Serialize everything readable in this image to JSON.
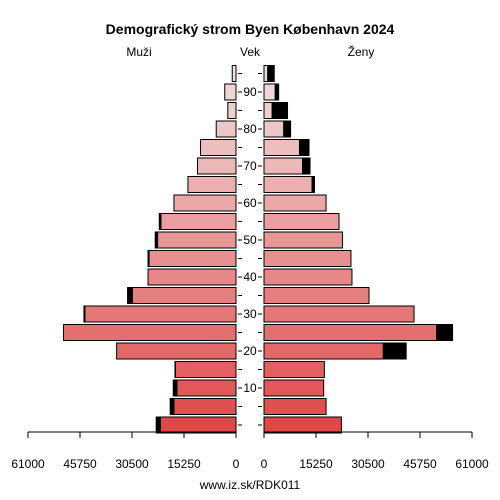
{
  "chart_data": {
    "type": "bar",
    "title": "Demografický strom Byen København 2024",
    "left_label": "Muži",
    "center_label": "Vek",
    "right_label": "Ženy",
    "footer": "www.iz.sk/RDK011",
    "x_tick_labels_left": [
      "61000",
      "45750",
      "30500",
      "15250",
      "0"
    ],
    "x_tick_values_left": [
      61000,
      45750,
      30500,
      15250,
      0
    ],
    "x_tick_labels_right": [
      "0",
      "15250",
      "30500",
      "45750",
      "61000"
    ],
    "x_tick_values_right": [
      0,
      15250,
      30500,
      45750,
      61000
    ],
    "xlim": [
      0,
      61000
    ],
    "y_tick_labels": [
      "90",
      "80",
      "70",
      "60",
      "50",
      "40",
      "30",
      "20",
      "10"
    ],
    "y_tick_values": [
      90,
      80,
      70,
      60,
      50,
      40,
      30,
      20,
      10
    ],
    "age_groups": [
      {
        "age": 0,
        "male": 22200,
        "female": 22700,
        "male_excess": 1200,
        "female_excess": 0
      },
      {
        "age": 5,
        "male": 18200,
        "female": 18200,
        "male_excess": 1100,
        "female_excess": 0
      },
      {
        "age": 10,
        "male": 17300,
        "female": 17500,
        "male_excess": 1100,
        "female_excess": 0
      },
      {
        "age": 15,
        "male": 17800,
        "female": 17700,
        "male_excess": 100,
        "female_excess": 0
      },
      {
        "age": 20,
        "male": 35000,
        "female": 35000,
        "male_excess": 0,
        "female_excess": 6700
      },
      {
        "age": 25,
        "male": 50600,
        "female": 50600,
        "male_excess": 0,
        "female_excess": 4700
      },
      {
        "age": 30,
        "male": 44300,
        "female": 44000,
        "male_excess": 300,
        "female_excess": 0
      },
      {
        "age": 35,
        "male": 30400,
        "female": 30800,
        "male_excess": 1400,
        "female_excess": 0
      },
      {
        "age": 40,
        "male": 25800,
        "female": 25800,
        "male_excess": 0,
        "female_excess": 0
      },
      {
        "age": 45,
        "male": 25500,
        "female": 25500,
        "male_excess": 300,
        "female_excess": 0
      },
      {
        "age": 50,
        "male": 23000,
        "female": 23000,
        "male_excess": 700,
        "female_excess": 0
      },
      {
        "age": 55,
        "male": 22000,
        "female": 22000,
        "male_excess": 500,
        "female_excess": 0
      },
      {
        "age": 60,
        "male": 18200,
        "female": 18200,
        "male_excess": 0,
        "female_excess": 0
      },
      {
        "age": 65,
        "male": 14100,
        "female": 14100,
        "male_excess": 0,
        "female_excess": 700
      },
      {
        "age": 70,
        "male": 11300,
        "female": 11300,
        "male_excess": 0,
        "female_excess": 2200
      },
      {
        "age": 75,
        "male": 10400,
        "female": 10400,
        "male_excess": 0,
        "female_excess": 2800
      },
      {
        "age": 80,
        "male": 5800,
        "female": 5800,
        "male_excess": 0,
        "female_excess": 2000
      },
      {
        "age": 85,
        "male": 2400,
        "female": 2400,
        "male_excess": 0,
        "female_excess": 4500
      },
      {
        "age": 90,
        "male": 3300,
        "female": 3300,
        "male_excess": 0,
        "female_excess": 1000
      },
      {
        "age": 95,
        "male": 1100,
        "female": 1100,
        "male_excess": 0,
        "female_excess": 1900
      }
    ],
    "excess_color": "#000000",
    "bar_color_young": "#e04848",
    "bar_color_old": "#f0dede"
  }
}
